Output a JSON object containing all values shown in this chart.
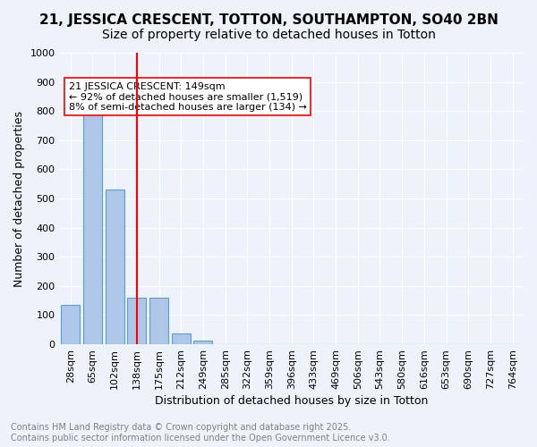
{
  "title1": "21, JESSICA CRESCENT, TOTTON, SOUTHAMPTON, SO40 2BN",
  "title2": "Size of property relative to detached houses in Totton",
  "xlabel": "Distribution of detached houses by size in Totton",
  "ylabel": "Number of detached properties",
  "categories": [
    "28sqm",
    "65sqm",
    "102sqm",
    "138sqm",
    "175sqm",
    "212sqm",
    "249sqm",
    "285sqm",
    "322sqm",
    "359sqm",
    "396sqm",
    "433sqm",
    "469sqm",
    "506sqm",
    "543sqm",
    "580sqm",
    "616sqm",
    "653sqm",
    "690sqm",
    "727sqm",
    "764sqm"
  ],
  "values": [
    135,
    795,
    530,
    160,
    160,
    38,
    12,
    0,
    0,
    0,
    0,
    0,
    0,
    0,
    0,
    0,
    0,
    0,
    0,
    0,
    0
  ],
  "bar_color": "#aec6e8",
  "bar_edge_color": "#5a9fd4",
  "vline_x": 3.0,
  "annotation_text": "21 JESSICA CRESCENT: 149sqm\n← 92% of detached houses are smaller (1,519)\n8% of semi-detached houses are larger (134) →",
  "annotation_box_color": "white",
  "annotation_box_edge_color": "red",
  "vline_color": "red",
  "ylim": [
    0,
    1000
  ],
  "yticks": [
    0,
    100,
    200,
    300,
    400,
    500,
    600,
    700,
    800,
    900,
    1000
  ],
  "footer_line1": "Contains HM Land Registry data © Crown copyright and database right 2025.",
  "footer_line2": "Contains public sector information licensed under the Open Government Licence v3.0.",
  "background_color": "#eef3fb",
  "grid_color": "white",
  "title_fontsize": 11,
  "subtitle_fontsize": 10,
  "axis_label_fontsize": 9,
  "tick_fontsize": 8,
  "annotation_fontsize": 8,
  "footer_fontsize": 7
}
